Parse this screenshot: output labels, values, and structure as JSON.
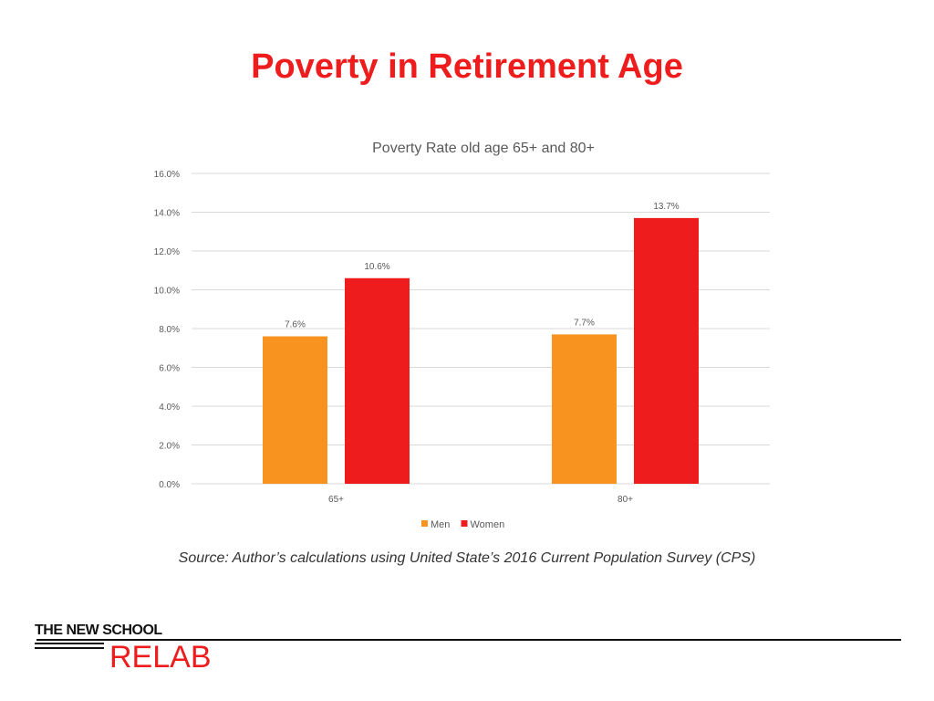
{
  "slide": {
    "title": "Poverty in Retirement Age",
    "source": "Source: Author’s calculations using United State’s 2016 Current Population Survey (CPS)"
  },
  "logo": {
    "top": "THE NEW SCHOOL",
    "bottom": "RELAB"
  },
  "colors": {
    "title": "#ee1c1c",
    "men": "#f7931e",
    "women": "#ee1c1c"
  },
  "chart_data": {
    "type": "bar",
    "title": "Poverty Rate old age 65+ and 80+",
    "categories": [
      "65+",
      "80+"
    ],
    "series": [
      {
        "name": "Men",
        "values": [
          7.6,
          7.7
        ],
        "labels": [
          "7.6%",
          "7.7%"
        ],
        "color": "#f7931e"
      },
      {
        "name": "Women",
        "values": [
          10.6,
          13.7
        ],
        "labels": [
          "10.6%",
          "13.7%"
        ],
        "color": "#ee1c1c"
      }
    ],
    "ylim": [
      0,
      16
    ],
    "yticks": [
      "0.0%",
      "2.0%",
      "4.0%",
      "6.0%",
      "8.0%",
      "10.0%",
      "12.0%",
      "14.0%",
      "16.0%"
    ],
    "grid": true,
    "legend": "bottom",
    "xlabel": "",
    "ylabel": ""
  }
}
